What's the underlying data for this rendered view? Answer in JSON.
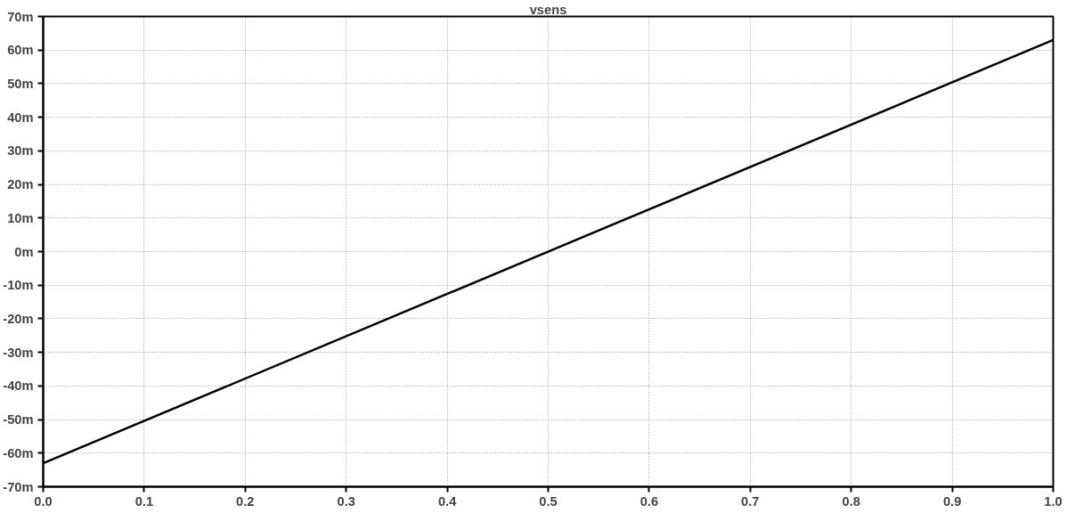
{
  "chart_data": {
    "type": "line",
    "title": "vsens",
    "x": [
      0.0,
      1.0
    ],
    "series": [
      {
        "color": "#000000",
        "values": [
          -63,
          63
        ]
      }
    ],
    "xlim": [
      0.0,
      1.0
    ],
    "xticks": [
      {
        "value": 0.0,
        "label": "0.0"
      },
      0.1,
      0.2,
      0.3,
      0.4,
      0.5,
      0.6,
      0.7,
      0.8,
      0.9,
      {
        "value": 1.0,
        "label": "1.0"
      }
    ],
    "ylim": [
      -70,
      70
    ],
    "yticks": [
      {
        "value": -70,
        "label": "-70m"
      },
      {
        "value": -60,
        "label": "-60m"
      },
      {
        "value": -50,
        "label": "-50m"
      },
      {
        "value": -40,
        "label": "-40m"
      },
      {
        "value": -30,
        "label": "-30m"
      },
      {
        "value": -20,
        "label": "-20m"
      },
      {
        "value": -10,
        "label": "-10m"
      },
      {
        "value": 0,
        "label": "0m"
      },
      {
        "value": 10,
        "label": "10m"
      },
      {
        "value": 20,
        "label": "20m"
      },
      {
        "value": 30,
        "label": "30m"
      },
      {
        "value": 40,
        "label": "40m"
      },
      {
        "value": 50,
        "label": "50m"
      },
      {
        "value": 60,
        "label": "60m"
      },
      {
        "value": 70,
        "label": "70m"
      }
    ],
    "grid": true,
    "line_style": "solid"
  }
}
